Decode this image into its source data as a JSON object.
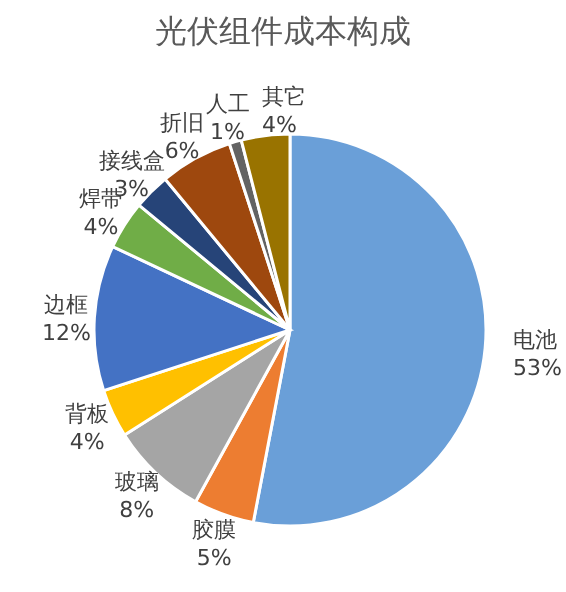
{
  "chart_data": {
    "type": "pie",
    "title": "光伏组件成本构成",
    "categories": [
      "电池",
      "胶膜",
      "玻璃",
      "背板",
      "边框",
      "焊带",
      "接线盒",
      "折旧",
      "人工",
      "其它"
    ],
    "values": [
      53,
      5,
      8,
      4,
      12,
      4,
      3,
      6,
      1,
      4
    ],
    "value_labels": [
      "53%",
      "5%",
      "8%",
      "4%",
      "12%",
      "4%",
      "3%",
      "6%",
      "1%",
      "4%"
    ],
    "colors": [
      "#6a9fd8",
      "#ed7d31",
      "#a5a5a5",
      "#ffc000",
      "#4472c4",
      "#70ad47",
      "#264478",
      "#9e480e",
      "#636363",
      "#997300"
    ],
    "legend": false
  }
}
